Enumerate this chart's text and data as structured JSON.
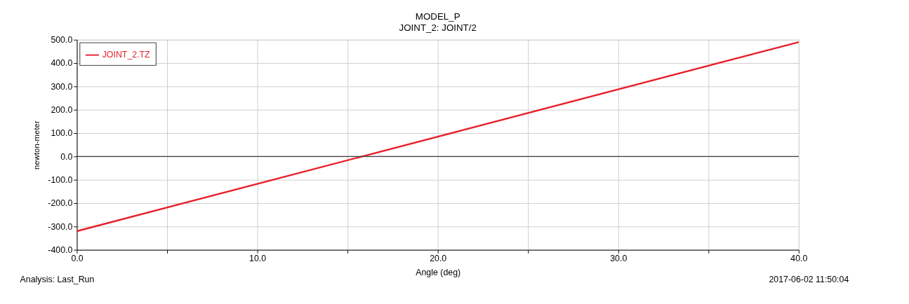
{
  "chart_data": {
    "type": "line",
    "title": "MODEL_P",
    "subtitle": "JOINT_2: JOINT/2",
    "xlabel": "Angle (deg)",
    "ylabel": "newton-meter",
    "annotations": [
      "Analysis:  Last_Run",
      "2017-06-02 11:50:04"
    ],
    "series": [
      {
        "name": "JOINT_2.TZ",
        "color": "#e8202a",
        "x": [
          0,
          40
        ],
        "values": [
          -320,
          490
        ]
      }
    ],
    "xlim": [
      0,
      40
    ],
    "xticks": [
      {
        "value": 0,
        "label": "0.0"
      },
      {
        "value": 5,
        "label": null
      },
      {
        "value": 10,
        "label": "10.0"
      },
      {
        "value": 15,
        "label": null
      },
      {
        "value": 20,
        "label": "20.0"
      },
      {
        "value": 25,
        "label": null
      },
      {
        "value": 30,
        "label": "30.0"
      },
      {
        "value": 35,
        "label": null
      },
      {
        "value": 40,
        "label": "40.0"
      }
    ],
    "ylim": [
      -400,
      500
    ],
    "yticks": [
      {
        "value": -400,
        "label": "-400.0"
      },
      {
        "value": -300,
        "label": "-300.0"
      },
      {
        "value": -200,
        "label": "-200.0"
      },
      {
        "value": -100,
        "label": "-100.0"
      },
      {
        "value": 0,
        "label": "0.0"
      },
      {
        "value": 100,
        "label": "100.0"
      },
      {
        "value": 200,
        "label": "200.0"
      },
      {
        "value": 300,
        "label": "300.0"
      },
      {
        "value": 400,
        "label": "400.0"
      },
      {
        "value": 500,
        "label": "500.0"
      }
    ],
    "ref_lines": [
      {
        "axis": "y",
        "value": 0,
        "color": "#404040"
      }
    ],
    "grid": true,
    "legend": "top left",
    "marker": "none",
    "line_style": "solid"
  }
}
